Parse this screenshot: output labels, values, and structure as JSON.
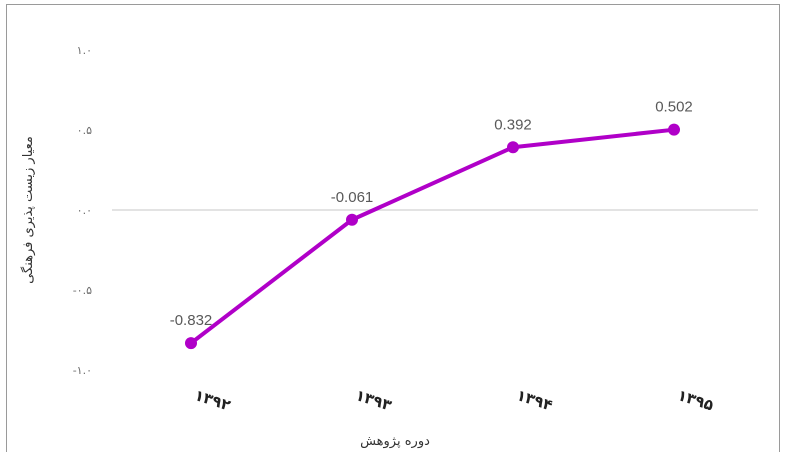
{
  "chart_data": {
    "type": "line",
    "categories": [
      "۱۳۹۲",
      "۱۳۹۳",
      "۱۳۹۴",
      "۱۳۹۵"
    ],
    "values": [
      -0.832,
      -0.061,
      0.392,
      0.502
    ],
    "data_labels": [
      "-0.832",
      "-0.061",
      "0.392",
      "0.502"
    ],
    "xlabel": "دوره پژوهش",
    "ylabel": "معیار زیست پذیری فرهنگی",
    "ylim": [
      -1.0,
      1.0
    ],
    "yticks": [
      1.0,
      0.5,
      0.0,
      -0.5,
      -1.0
    ],
    "ytick_labels": [
      "۱.۰",
      "۰.۵",
      "۰.۰",
      "-۰.۵",
      "-۱.۰"
    ],
    "series_color": "#b000c8",
    "zero_line_color": "#e3e3e3",
    "grid": false,
    "legend": "none"
  }
}
